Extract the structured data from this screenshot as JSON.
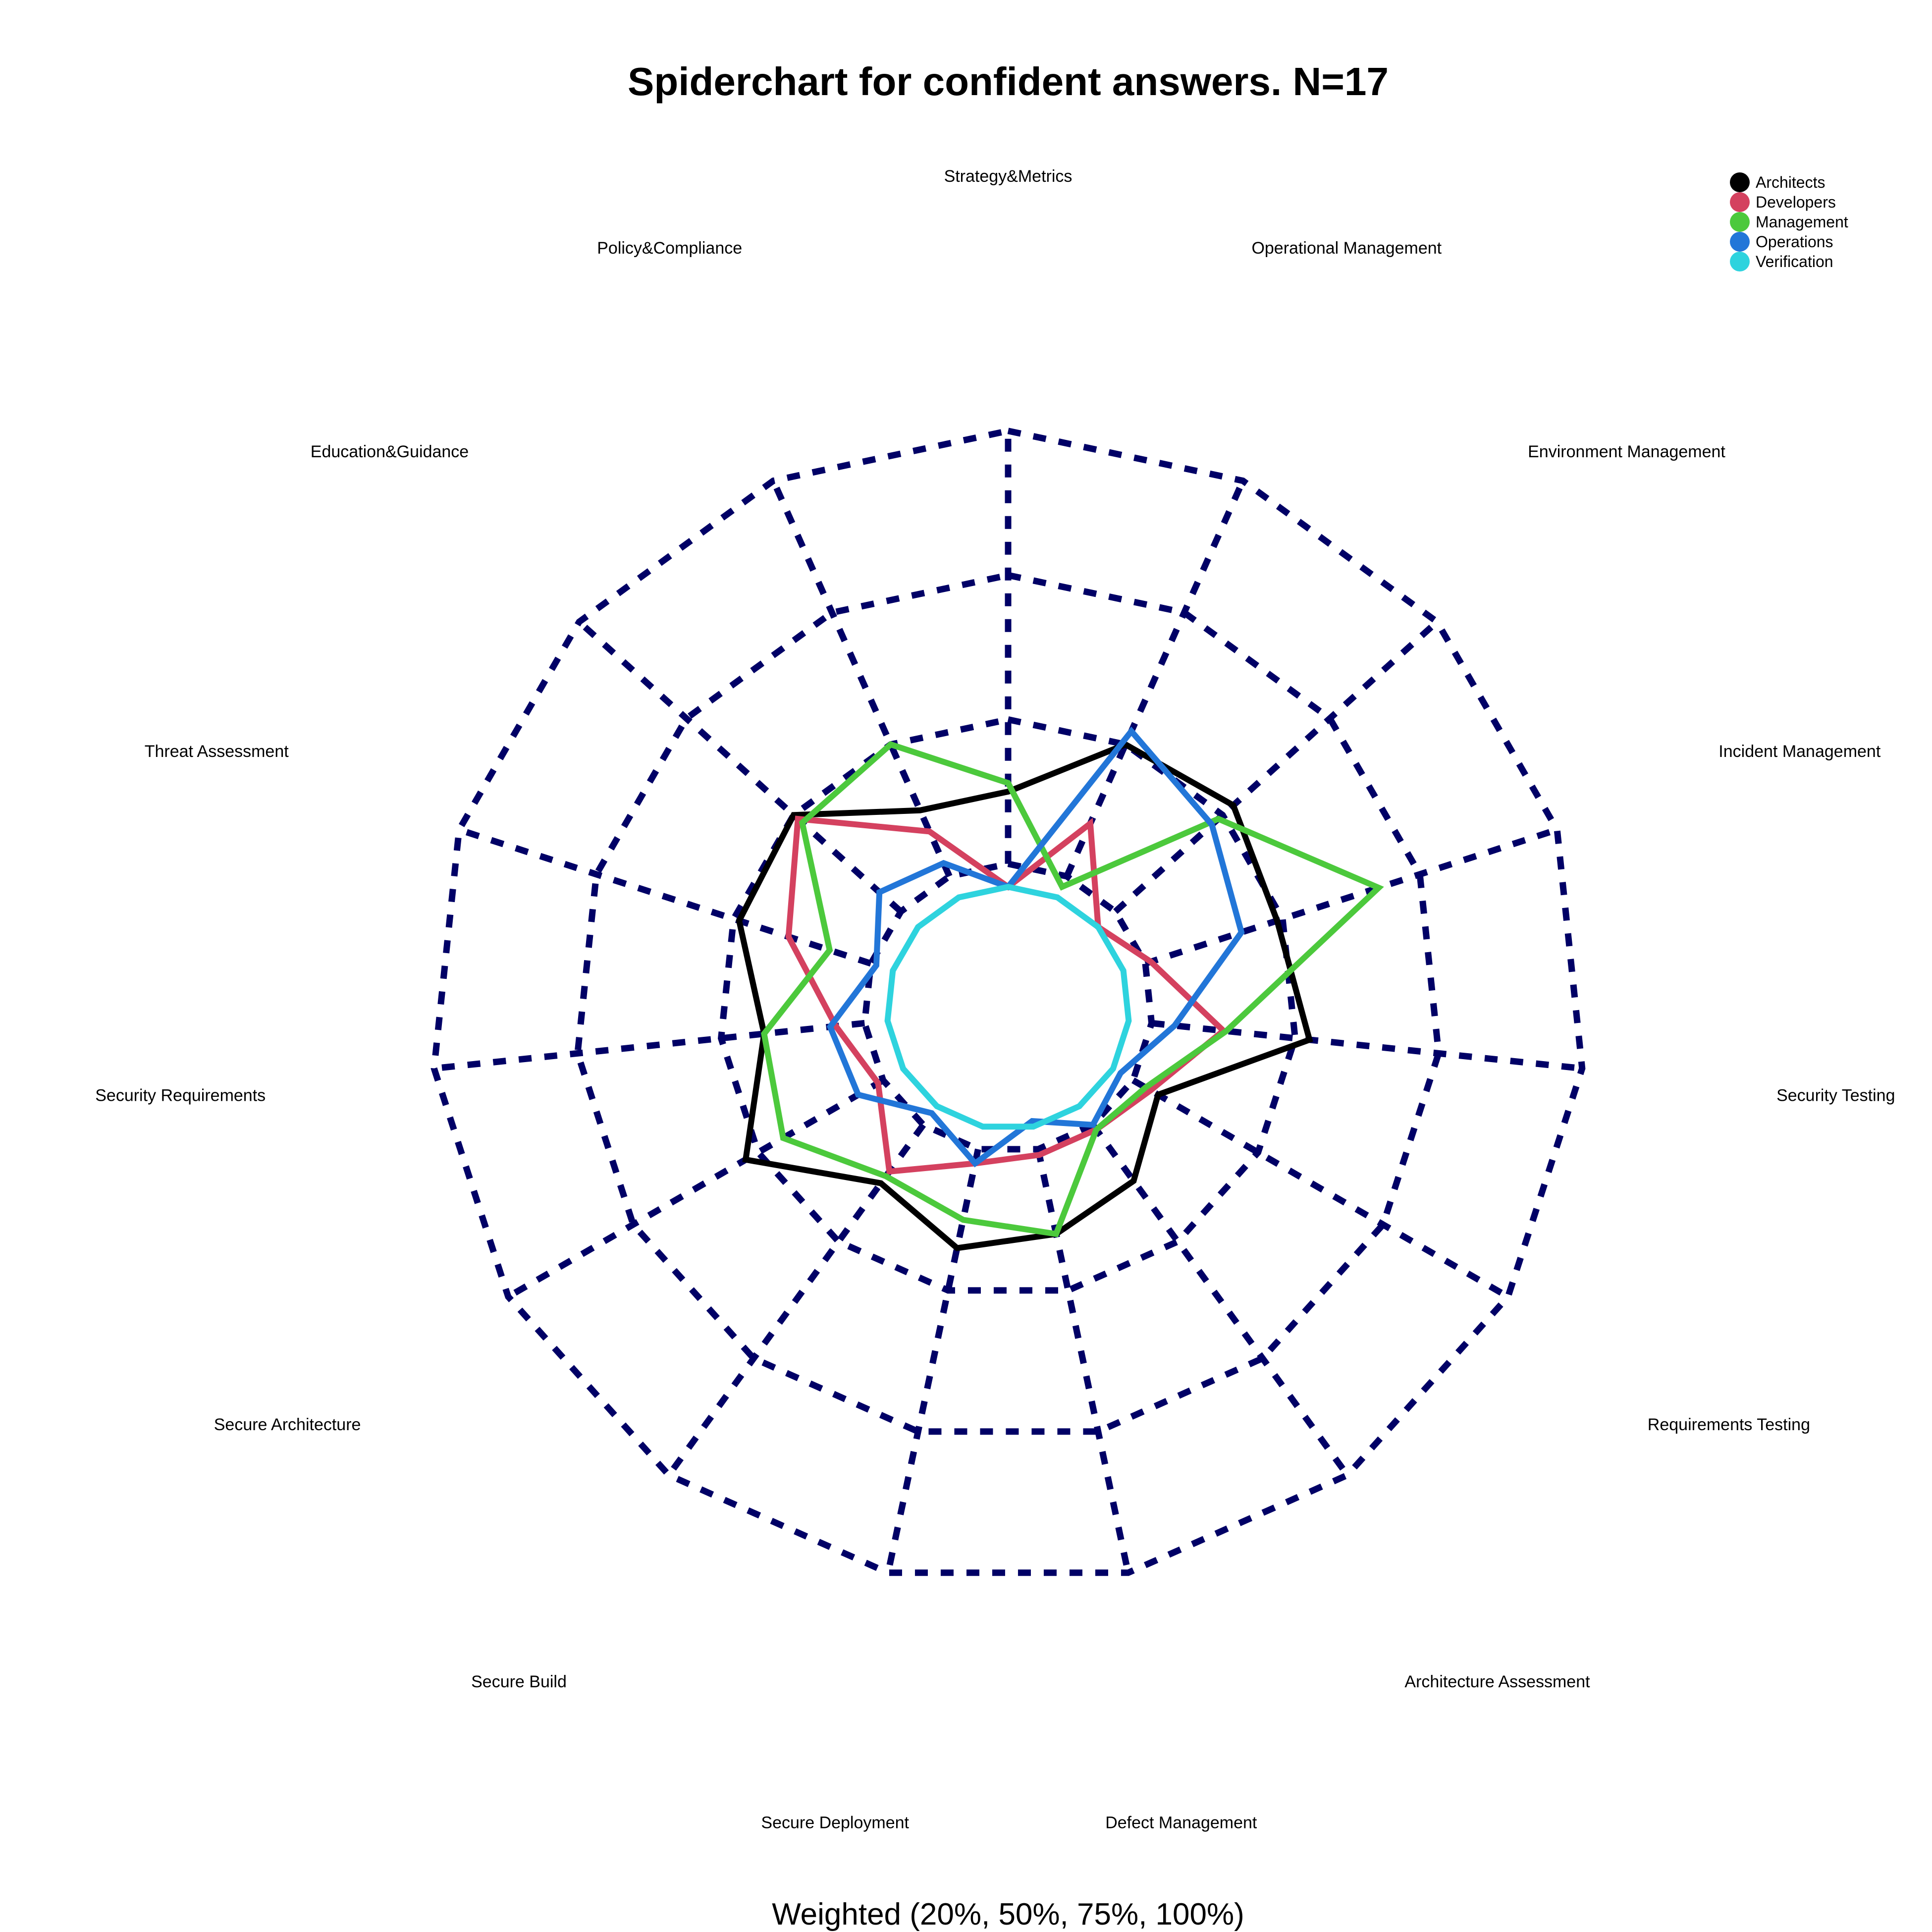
{
  "chart_data": {
    "type": "radar",
    "title": "Spiderchart for confident answers. N=17",
    "caption": "Weighted (20%, 50%, 75%, 100%)",
    "categories": [
      "Strategy&Metrics",
      "Operational Management",
      "Environment Management",
      "Incident Management",
      "Security Testing",
      "Requirements Testing",
      "Architecture Assessment",
      "Defect Management",
      "Secure Deployment",
      "Secure Build",
      "Secure Architecture",
      "Security Requirements",
      "Threat Assessment",
      "Education&Guidance",
      "Policy&Compliance"
    ],
    "rlim": [
      0,
      2.3
    ],
    "grid_rings": [
      0.5,
      1.0,
      1.5,
      2.0
    ],
    "grid": true,
    "legend_position": "top-right",
    "series": [
      {
        "name": "Architects",
        "color": "#000000",
        "values": [
          0.75,
          1.0,
          1.05,
          0.98,
          1.05,
          0.6,
          0.74,
          0.8,
          0.85,
          0.75,
          1.05,
          0.85,
          0.98,
          1.0,
          0.75
        ]
      },
      {
        "name": "Developers",
        "color": "#D4415F",
        "values": [
          0.42,
          0.7,
          0.42,
          0.52,
          0.75,
          0.57,
          0.52,
          0.52,
          0.55,
          0.7,
          0.52,
          0.6,
          0.8,
          0.98,
          0.67
        ]
      },
      {
        "name": "Management",
        "color": "#4CC93C",
        "values": [
          0.78,
          0.46,
          0.98,
          1.35,
          0.76,
          0.55,
          0.52,
          0.8,
          0.75,
          0.72,
          0.9,
          0.85,
          0.65,
          0.96,
          1.0
        ]
      },
      {
        "name": "Operations",
        "color": "#2276D8",
        "values": [
          0.42,
          1.05,
          0.95,
          0.85,
          0.58,
          0.45,
          0.5,
          0.4,
          0.55,
          0.45,
          0.6,
          0.62,
          0.48,
          0.6,
          0.55
        ]
      },
      {
        "name": "Verification",
        "color": "#2ED3DE",
        "values": [
          0.42,
          0.42,
          0.42,
          0.42,
          0.42,
          0.42,
          0.42,
          0.42,
          0.42,
          0.42,
          0.42,
          0.42,
          0.42,
          0.42,
          0.42
        ]
      }
    ]
  }
}
